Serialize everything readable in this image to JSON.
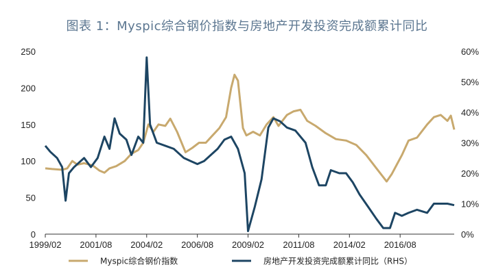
{
  "chart_data": {
    "type": "line",
    "title": "图表 1：Myspic综合钢价指数与房地产开发投资完成额累计同比",
    "x_tick_labels": [
      "1999/02",
      "2001/08",
      "2004/02",
      "2006/08",
      "2009/02",
      "2011/08",
      "2014/02",
      "2016/08"
    ],
    "x_range": [
      "1999-02",
      "2019-04"
    ],
    "y_left": {
      "range": [
        0,
        250
      ],
      "ticks": [
        0,
        50,
        100,
        150,
        200,
        250
      ]
    },
    "y_right": {
      "range": [
        0,
        60
      ],
      "ticks": [
        "0%",
        "10%",
        "20%",
        "30%",
        "40%",
        "50%",
        "60%"
      ],
      "unit": "%"
    },
    "grid": false,
    "legend_position": "bottom",
    "series": [
      {
        "name": "Myspic综合钢价指数",
        "axis": "left",
        "color": "#c8a96e",
        "points": [
          [
            "1999-02",
            90
          ],
          [
            "1999-06",
            89
          ],
          [
            "1999-12",
            88
          ],
          [
            "2000-03",
            90
          ],
          [
            "2000-06",
            100
          ],
          [
            "2000-09",
            95
          ],
          [
            "2001-01",
            97
          ],
          [
            "2001-06",
            94
          ],
          [
            "2001-10",
            87
          ],
          [
            "2002-01",
            84
          ],
          [
            "2002-04",
            90
          ],
          [
            "2002-08",
            93
          ],
          [
            "2003-01",
            100
          ],
          [
            "2003-05",
            110
          ],
          [
            "2003-09",
            115
          ],
          [
            "2003-12",
            125
          ],
          [
            "2004-03",
            150
          ],
          [
            "2004-06",
            140
          ],
          [
            "2004-09",
            150
          ],
          [
            "2005-01",
            148
          ],
          [
            "2005-04",
            158
          ],
          [
            "2005-08",
            140
          ],
          [
            "2006-01",
            112
          ],
          [
            "2006-05",
            118
          ],
          [
            "2006-09",
            125
          ],
          [
            "2007-01",
            125
          ],
          [
            "2007-05",
            135
          ],
          [
            "2007-09",
            145
          ],
          [
            "2008-01",
            160
          ],
          [
            "2008-04",
            200
          ],
          [
            "2008-06",
            218
          ],
          [
            "2008-08",
            210
          ],
          [
            "2008-11",
            145
          ],
          [
            "2009-01",
            135
          ],
          [
            "2009-05",
            140
          ],
          [
            "2009-09",
            135
          ],
          [
            "2010-01",
            150
          ],
          [
            "2010-05",
            160
          ],
          [
            "2010-08",
            148
          ],
          [
            "2011-01",
            163
          ],
          [
            "2011-05",
            168
          ],
          [
            "2011-09",
            170
          ],
          [
            "2012-01",
            155
          ],
          [
            "2012-06",
            148
          ],
          [
            "2012-12",
            138
          ],
          [
            "2013-06",
            130
          ],
          [
            "2013-12",
            128
          ],
          [
            "2014-06",
            122
          ],
          [
            "2014-12",
            108
          ],
          [
            "2015-06",
            90
          ],
          [
            "2015-12",
            72
          ],
          [
            "2016-03",
            82
          ],
          [
            "2016-06",
            95
          ],
          [
            "2016-09",
            108
          ],
          [
            "2017-01",
            128
          ],
          [
            "2017-06",
            132
          ],
          [
            "2017-12",
            150
          ],
          [
            "2018-04",
            160
          ],
          [
            "2018-08",
            163
          ],
          [
            "2018-12",
            155
          ],
          [
            "2019-02",
            162
          ],
          [
            "2019-04",
            143
          ]
        ]
      },
      {
        "name": "房地产开发投资完成额累计同比（RHS）",
        "axis": "right",
        "color": "#1d4563",
        "points": [
          [
            "1999-02",
            29
          ],
          [
            "1999-05",
            27
          ],
          [
            "1999-09",
            25
          ],
          [
            "1999-12",
            22
          ],
          [
            "2000-02",
            11
          ],
          [
            "2000-04",
            20
          ],
          [
            "2000-07",
            22
          ],
          [
            "2000-11",
            24
          ],
          [
            "2001-01",
            25
          ],
          [
            "2001-05",
            22
          ],
          [
            "2001-09",
            25
          ],
          [
            "2002-01",
            32
          ],
          [
            "2002-04",
            28
          ],
          [
            "2002-07",
            38
          ],
          [
            "2002-10",
            33
          ],
          [
            "2003-02",
            31
          ],
          [
            "2003-05",
            26
          ],
          [
            "2003-09",
            32
          ],
          [
            "2003-12",
            30
          ],
          [
            "2004-02",
            58
          ],
          [
            "2004-04",
            36
          ],
          [
            "2004-08",
            30
          ],
          [
            "2005-01",
            29
          ],
          [
            "2005-06",
            28
          ],
          [
            "2005-12",
            25
          ],
          [
            "2006-04",
            24
          ],
          [
            "2006-08",
            23
          ],
          [
            "2006-12",
            24
          ],
          [
            "2007-04",
            26
          ],
          [
            "2007-08",
            28
          ],
          [
            "2007-12",
            31
          ],
          [
            "2008-04",
            32
          ],
          [
            "2008-08",
            28
          ],
          [
            "2008-12",
            20
          ],
          [
            "2009-02",
            1
          ],
          [
            "2009-06",
            9
          ],
          [
            "2009-10",
            18
          ],
          [
            "2010-02",
            35
          ],
          [
            "2010-05",
            38
          ],
          [
            "2010-09",
            37
          ],
          [
            "2011-01",
            35
          ],
          [
            "2011-06",
            34
          ],
          [
            "2011-12",
            30
          ],
          [
            "2012-04",
            22
          ],
          [
            "2012-08",
            16
          ],
          [
            "2012-12",
            16
          ],
          [
            "2013-03",
            21
          ],
          [
            "2013-08",
            20
          ],
          [
            "2013-12",
            20
          ],
          [
            "2014-04",
            17
          ],
          [
            "2014-08",
            13
          ],
          [
            "2015-01",
            9
          ],
          [
            "2015-06",
            5
          ],
          [
            "2015-10",
            2
          ],
          [
            "2016-02",
            2
          ],
          [
            "2016-05",
            7
          ],
          [
            "2016-09",
            6
          ],
          [
            "2017-01",
            7
          ],
          [
            "2017-06",
            8
          ],
          [
            "2017-12",
            7
          ],
          [
            "2018-04",
            10
          ],
          [
            "2018-08",
            10
          ],
          [
            "2018-12",
            10
          ],
          [
            "2019-04",
            9.5
          ]
        ]
      }
    ]
  }
}
